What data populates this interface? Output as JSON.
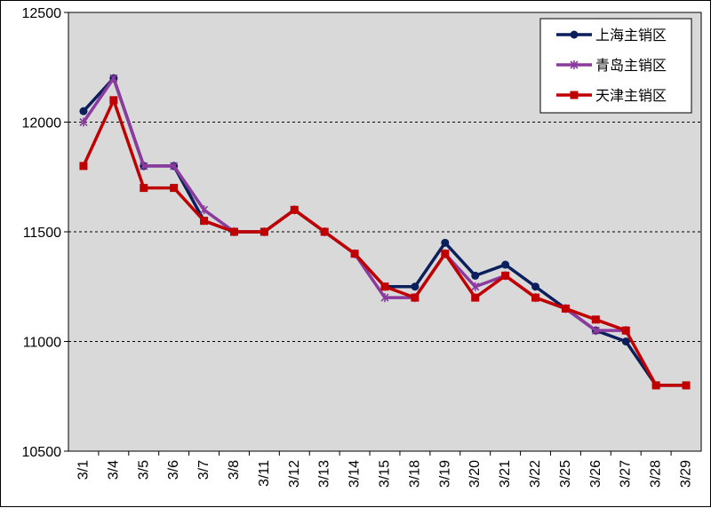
{
  "chart_data": {
    "type": "line",
    "title": "",
    "xlabel": "",
    "ylabel": "",
    "ylim": [
      10500,
      12500
    ],
    "yticks": [
      10500,
      11000,
      11500,
      12000,
      12500
    ],
    "grid": "horizontal-dashed",
    "legend_position": "top-right",
    "plot_background": "#d9d9d9",
    "categories": [
      "3/1",
      "3/4",
      "3/5",
      "3/6",
      "3/7",
      "3/8",
      "3/11",
      "3/12",
      "3/13",
      "3/14",
      "3/15",
      "3/18",
      "3/19",
      "3/20",
      "3/21",
      "3/22",
      "3/25",
      "3/26",
      "3/27",
      "3/28",
      "3/29"
    ],
    "series": [
      {
        "name": "上海主销区",
        "color": "#0b1f5c",
        "marker": "circle",
        "values": [
          12050,
          12200,
          11800,
          11800,
          11550,
          11500,
          11500,
          11600,
          11500,
          11400,
          11250,
          11250,
          11450,
          11300,
          11350,
          11250,
          11150,
          11050,
          11000,
          10800,
          10800
        ]
      },
      {
        "name": "青岛主销区",
        "color": "#8b3a9e",
        "marker": "star",
        "values": [
          12000,
          12200,
          11800,
          11800,
          11600,
          11500,
          11500,
          11600,
          11500,
          11400,
          11200,
          11200,
          11400,
          11250,
          11300,
          11200,
          11150,
          11050,
          11050,
          null,
          null
        ]
      },
      {
        "name": "天津主销区",
        "color": "#c00000",
        "marker": "square",
        "values": [
          11800,
          12100,
          11700,
          11700,
          11550,
          11500,
          11500,
          11600,
          11500,
          11400,
          11250,
          11200,
          11400,
          11200,
          11300,
          11200,
          11150,
          11100,
          11050,
          10800,
          10800
        ]
      }
    ]
  }
}
